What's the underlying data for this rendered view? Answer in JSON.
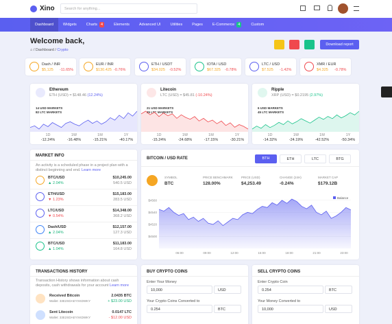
{
  "header": {
    "logo": "Xino",
    "search": "Search for anything..."
  },
  "nav": [
    {
      "label": "Dashboard"
    },
    {
      "label": "Widgets"
    },
    {
      "label": "Charts",
      "badge": "4"
    },
    {
      "label": "Elements"
    },
    {
      "label": "Advanced UI"
    },
    {
      "label": "Utilities"
    },
    {
      "label": "Pages"
    },
    {
      "label": "E-Commerce",
      "badge": "4"
    },
    {
      "label": "Custom"
    }
  ],
  "page_header": {
    "title": "Welcome back,",
    "breadcrumb": [
      "Dashboard",
      "Crypto"
    ],
    "button": "Download report"
  },
  "tickers": [
    {
      "pair": "Dash / INR",
      "price": "$5,125",
      "change": "-11.65%"
    },
    {
      "pair": "EUR / INR",
      "price": "$130.425",
      "change": "-0.76%"
    },
    {
      "pair": "ETH / USDT",
      "price": "$34.025",
      "change": "-0.52%"
    },
    {
      "pair": "IOTA / USD",
      "price": "$67.325",
      "change": "-0.78%"
    },
    {
      "pair": "LTC / USD",
      "price": "$7.525",
      "change": "-1.42%"
    },
    {
      "pair": "XMR / EUR",
      "price": "$4.325",
      "change": "-0.78%"
    }
  ],
  "coins": [
    {
      "name": "Ethereum",
      "rate": "ETH (USD) = $148.46",
      "change": "(12.24%)",
      "color": "#5b5ff0",
      "markets": [
        "14 USD MARKETS",
        "82 LTC MARKETS"
      ],
      "periods": [
        "1D",
        "1W",
        "1M",
        "1Y"
      ],
      "period_changes": [
        "-12.24%",
        "-16.48%",
        "-15.21%",
        "-40.17%"
      ],
      "spark": [
        40,
        42,
        38,
        44,
        41,
        46,
        43,
        40,
        45,
        47,
        44,
        42,
        46,
        49,
        45,
        48,
        44,
        47,
        52,
        49,
        55,
        51,
        58,
        54,
        60
      ]
    },
    {
      "name": "Litecoin",
      "rate": "LTC (USD) = $45.81",
      "change": "(-10.24%)",
      "color": "#f0484d",
      "markets": [
        "21 USD MARKETS",
        "35 LTC MARKETS"
      ],
      "periods": [
        "1D",
        "1W",
        "1M",
        "1Y"
      ],
      "period_changes": [
        "-15.24%",
        "-24.68%",
        "-17.15%",
        "-30.21%"
      ],
      "spark": [
        55,
        58,
        54,
        57,
        52,
        56,
        53,
        55,
        50,
        54,
        51,
        49,
        52,
        47,
        50,
        46,
        48,
        44,
        47,
        42,
        45,
        40,
        43,
        41,
        38
      ]
    },
    {
      "name": "Ripple",
      "rate": "XRP (USD) = $0.2195",
      "change": "(2.97%)",
      "color": "#19c38a",
      "markets": [
        "6 USD MARKETS",
        "45 LTC MARKETS"
      ],
      "periods": [
        "1D",
        "1W",
        "1M",
        "1Y"
      ],
      "period_changes": [
        "-14.32%",
        "-24.19%",
        "-42.52%",
        "-50.34%"
      ],
      "spark": [
        38,
        42,
        39,
        44,
        40,
        43,
        47,
        44,
        49,
        45,
        48,
        52,
        49,
        46,
        50,
        54,
        51,
        55,
        52,
        57,
        53,
        56,
        60,
        57,
        62
      ]
    }
  ],
  "market_info": {
    "title": "MARKET INFO",
    "text": "An activity is a scheduled phase in a project plan with a distinct beginning and end.",
    "link": "Learn more",
    "rows": [
      {
        "pair": "BTC/USD",
        "price": "$10,245.00",
        "change": "2.04%",
        "volume": "540.5 USD",
        "up": true
      },
      {
        "pair": "ETH/USD",
        "price": "$15,183.00",
        "change": "1.23%",
        "volume": "283.5 USD",
        "up": false
      },
      {
        "pair": "LTC/USD",
        "price": "$14,348.00",
        "change": "0.54%",
        "volume": "368.2 USD",
        "up": false
      },
      {
        "pair": "Dash/USD",
        "price": "$12,157.00",
        "change": "2.04%",
        "volume": "127.3 USD",
        "up": true
      },
      {
        "pair": "BTC/USD",
        "price": "$11,183.00",
        "change": "1.04%",
        "volume": "164.8 USD",
        "up": true
      }
    ]
  },
  "bitcoin": {
    "title": "BITCOIN / USD RATE",
    "tabs": [
      "BTH",
      "ETH",
      "LTC",
      "BTG"
    ],
    "stats": [
      {
        "label": "SYMBOL",
        "value": "BTC"
      },
      {
        "label": "PRICE BENCHMARK",
        "value": "128.00%"
      },
      {
        "label": "PRICE (USD)",
        "value": "$4,253.49"
      },
      {
        "label": "CHANGE (24H)",
        "value": "-0.24%"
      },
      {
        "label": "MARKET CAP",
        "value": "$179.12B"
      }
    ],
    "chart": {
      "legend": "Balance",
      "color": "#5b5ff0",
      "ylim": [
        4480,
        4570
      ],
      "yticks": [
        {
          "value": 4560,
          "label": "$4560"
        },
        {
          "value": 4540,
          "label": "$4540"
        },
        {
          "value": 4520,
          "label": "$4520"
        },
        {
          "value": 4500,
          "label": "$4500"
        }
      ],
      "xlabels": [
        "06:00",
        "09:00",
        "12:00",
        "15:00",
        "18:00",
        "21:00",
        "23:00"
      ],
      "values": [
        4545,
        4542,
        4548,
        4540,
        4535,
        4538,
        4528,
        4532,
        4525,
        4530,
        4522,
        4520,
        4526,
        4518,
        4524,
        4530,
        4528,
        4536,
        4540,
        4538,
        4545,
        4550,
        4548,
        4556,
        4552,
        4560,
        4555,
        4562,
        4558,
        4550,
        4546,
        4552,
        4540,
        4536,
        4542,
        4530,
        4534,
        4540,
        4548,
        4544
      ]
    }
  },
  "transactions": {
    "title": "TRANSACTIONS HISTORY",
    "text": "Transaction History shows information about cash deposits, cash withdrawals for your account",
    "link": "Learn more",
    "rows": [
      {
        "title": "Received Bitcoin",
        "wallet": "Wallet: 33E2SDAEYXKDWKY",
        "amount": "2.0435 BTC",
        "usd": "+ $23.00 USD",
        "up": true
      },
      {
        "title": "Sent Litecoin",
        "wallet": "Wallet: 33E2SDAEYXKDWKY",
        "amount": "0.0147 LTC",
        "usd": "- $12.00 USD",
        "up": false
      }
    ]
  },
  "buy": {
    "title": "BUY CRYPTO COINS",
    "fields": [
      {
        "label": "Enter Your Money",
        "value": "10,000",
        "unit": "USD"
      },
      {
        "label": "Your Crypto Coins Converted to",
        "value": "0.254",
        "unit": "BTC"
      }
    ]
  },
  "sell": {
    "title": "SELL CRYPTO COINS",
    "fields": [
      {
        "label": "Enter Crypto Coin",
        "value": "0.254",
        "unit": "BTC"
      },
      {
        "label": "Your Money Converted to",
        "value": "10,000",
        "unit": "USD"
      }
    ]
  }
}
